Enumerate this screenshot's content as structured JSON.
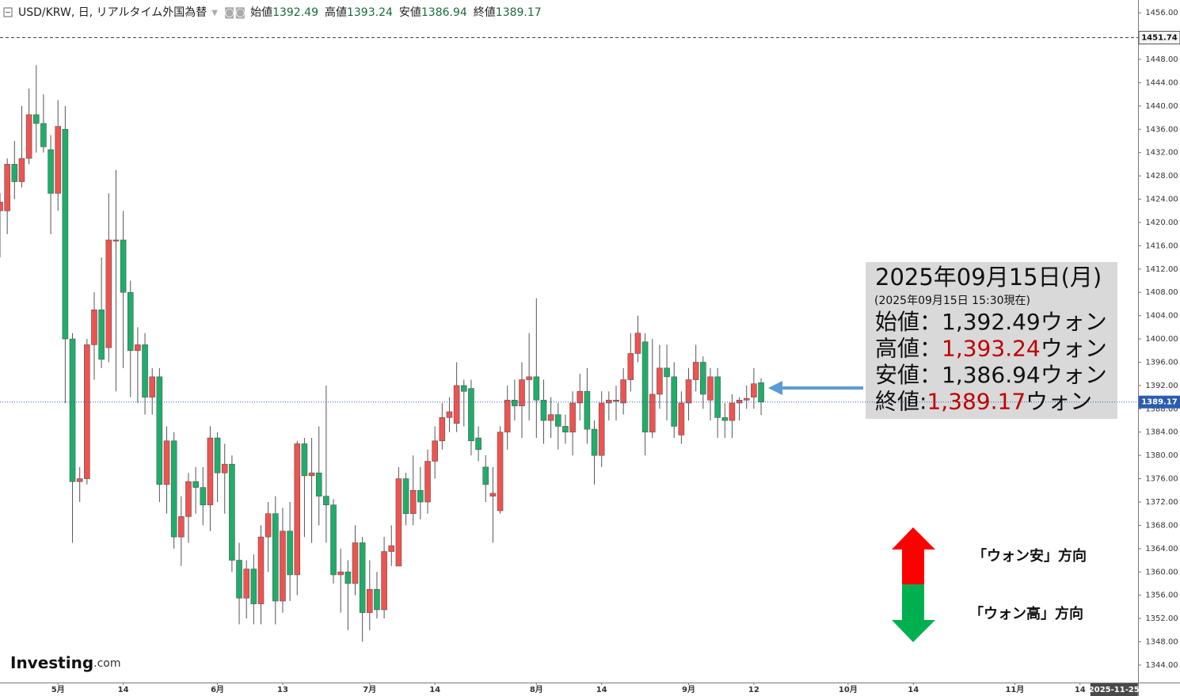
{
  "chart_data": {
    "type": "candlestick",
    "title": "USD/KRW, 日, リアルタイム外国為替",
    "ohlc_labels": [
      "始値",
      "高値",
      "安値",
      "終値"
    ],
    "up_color": "#ef5350",
    "down_color": "#1fae6a",
    "open": [
      1422,
      1422,
      1430,
      1427,
      1431,
      1438.5,
      1437,
      1432.5,
      1425,
      1436,
      1400,
      1375.5,
      1376,
      1399,
      1405,
      1398.5,
      1417,
      1417,
      1408,
      1398,
      1399,
      1390,
      1393.5,
      1375,
      1382.5,
      1366,
      1369.5,
      1375.5,
      1374.5,
      1371.5,
      1383,
      1377,
      1378.5,
      1362,
      1355.5,
      1360.5,
      1354.5,
      1366,
      1370,
      1355,
      1367,
      1359.5,
      1382,
      1376.5,
      1377,
      1373,
      1371.5,
      1359.5,
      1360,
      1358,
      1365,
      1353,
      1357,
      1353.5,
      1363.5,
      1361,
      1376,
      1370,
      1374,
      1372,
      1379,
      1382.5,
      1386.5,
      1385.5,
      1392,
      1391.5,
      1383,
      1378,
      1373,
      1370.5,
      1384,
      1389.5,
      1388.5,
      1393,
      1393.5,
      1389.5,
      1386,
      1387,
      1385,
      1384,
      1389,
      1391,
      1384.5,
      1380,
      1389,
      1389.5,
      1389,
      1393,
      1397.5,
      1399.5,
      1384,
      1390.5,
      1395,
      1393.5,
      1383.5,
      1389,
      1393,
      1396,
      1389.5,
      1393.5,
      1386.5,
      1386,
      1389,
      1389.5,
      1390,
      1392.49
    ],
    "high": [
      1425,
      1431,
      1434,
      1440,
      1443,
      1447,
      1442,
      1435,
      1441,
      1440,
      1401,
      1378,
      1400,
      1408,
      1414,
      1425,
      1429,
      1422,
      1410,
      1402,
      1401,
      1395,
      1395,
      1385,
      1384,
      1373,
      1377,
      1378,
      1378,
      1385,
      1384,
      1382,
      1380,
      1365,
      1362,
      1363,
      1368,
      1372,
      1373,
      1371,
      1372,
      1382.5,
      1383,
      1383,
      1385,
      1392,
      1372.5,
      1364,
      1362,
      1368,
      1366,
      1362,
      1360,
      1366,
      1368,
      1378,
      1377,
      1380,
      1378,
      1381,
      1385,
      1389,
      1390,
      1396,
      1393,
      1393,
      1385,
      1380,
      1378,
      1385,
      1392,
      1393,
      1396,
      1401,
      1407,
      1393,
      1390,
      1389,
      1387,
      1391,
      1394,
      1395,
      1386,
      1391,
      1391,
      1392,
      1395,
      1401,
      1404,
      1401,
      1400,
      1399,
      1399,
      1396,
      1391,
      1395,
      1399,
      1397,
      1395,
      1395,
      1389,
      1390.5,
      1390,
      1392,
      1395,
      1393.24
    ],
    "low": [
      1414,
      1418,
      1424,
      1426,
      1430,
      1432,
      1432,
      1418,
      1422,
      1389,
      1365,
      1372,
      1375,
      1393,
      1395,
      1396,
      1391,
      1395,
      1390,
      1389,
      1387,
      1387,
      1372,
      1370,
      1364,
      1361,
      1365,
      1370,
      1368,
      1367,
      1372,
      1370,
      1360,
      1351,
      1352,
      1351,
      1351,
      1360,
      1351,
      1353,
      1355,
      1356,
      1366,
      1365,
      1368,
      1365,
      1358,
      1353,
      1350,
      1356,
      1348,
      1350,
      1352,
      1352,
      1361,
      1361,
      1368,
      1368,
      1369,
      1370,
      1376,
      1381,
      1384,
      1384,
      1385,
      1380,
      1379,
      1372,
      1365,
      1370,
      1381,
      1386,
      1383,
      1386,
      1383,
      1382,
      1383,
      1381,
      1382,
      1380,
      1386,
      1382,
      1375,
      1378,
      1386,
      1386,
      1387,
      1391,
      1396,
      1380,
      1383,
      1388,
      1386,
      1383,
      1382,
      1386,
      1391,
      1388,
      1386,
      1383,
      1383,
      1383,
      1386,
      1388,
      1388,
      1386.94
    ],
    "close": [
      1423.5,
      1430,
      1427,
      1431,
      1438.5,
      1437,
      1433,
      1425,
      1436.5,
      1400,
      1375.5,
      1376,
      1399,
      1405,
      1396.5,
      1417,
      1417,
      1408,
      1398,
      1399,
      1390,
      1393.5,
      1375,
      1382.5,
      1366,
      1369.5,
      1375.5,
      1374.5,
      1371.5,
      1383,
      1377,
      1378.5,
      1362,
      1355.5,
      1360.5,
      1354.5,
      1366,
      1370,
      1355,
      1367,
      1359.5,
      1382,
      1376.5,
      1377,
      1373,
      1371.5,
      1359.5,
      1360,
      1358,
      1365,
      1353,
      1357,
      1353.5,
      1363.5,
      1364.5,
      1376,
      1370,
      1374,
      1372,
      1379,
      1382.5,
      1386.5,
      1387.5,
      1392,
      1391,
      1382.5,
      1381,
      1375,
      1373.5,
      1384,
      1389.5,
      1388.5,
      1393,
      1393.5,
      1389.5,
      1386,
      1387,
      1385,
      1384,
      1389,
      1391,
      1384.5,
      1380,
      1389,
      1389.5,
      1389.5,
      1393,
      1397.5,
      1401,
      1384,
      1390.5,
      1395,
      1393.5,
      1385,
      1389,
      1393,
      1396,
      1390.5,
      1393.5,
      1386.5,
      1386,
      1389,
      1389.5,
      1389.8,
      1392.3,
      1389.17
    ],
    "xlim": [
      0,
      157
    ],
    "xticks": [
      {
        "value": 8,
        "label": "5月"
      },
      {
        "value": 17,
        "label": "14"
      },
      {
        "value": 30,
        "label": "6月"
      },
      {
        "value": 39,
        "label": "13"
      },
      {
        "value": 51,
        "label": "7月"
      },
      {
        "value": 60,
        "label": "14"
      },
      {
        "value": 74,
        "label": "8月"
      },
      {
        "value": 83,
        "label": "14"
      },
      {
        "value": 95,
        "label": "9月"
      },
      {
        "value": 104,
        "label": "12"
      },
      {
        "value": 117,
        "label": "10月"
      },
      {
        "value": 126,
        "label": "14"
      },
      {
        "value": 140,
        "label": "11月"
      },
      {
        "value": 149,
        "label": "14"
      }
    ],
    "x_marker": {
      "value": 153.7,
      "label": "2025-11-25"
    },
    "ylim": [
      1341,
      1458.2
    ],
    "yticks": [
      {
        "value": 1344,
        "label": "1344.00"
      },
      {
        "value": 1348,
        "label": "1348.00"
      },
      {
        "value": 1352,
        "label": "1352.00"
      },
      {
        "value": 1356,
        "label": "1356.00"
      },
      {
        "value": 1360,
        "label": "1360.00"
      },
      {
        "value": 1364,
        "label": "1364.00"
      },
      {
        "value": 1368,
        "label": "1368.00"
      },
      {
        "value": 1372,
        "label": "1372.00"
      },
      {
        "value": 1376,
        "label": "1376.00"
      },
      {
        "value": 1380,
        "label": "1380.00"
      },
      {
        "value": 1384,
        "label": "1384.00"
      },
      {
        "value": 1388,
        "label": "1388.00"
      },
      {
        "value": 1392,
        "label": "1392.00"
      },
      {
        "value": 1396,
        "label": "1396.00"
      },
      {
        "value": 1400,
        "label": "1400.00"
      },
      {
        "value": 1404,
        "label": "1404.00"
      },
      {
        "value": 1408,
        "label": "1408.00"
      },
      {
        "value": 1412,
        "label": "1412.00"
      },
      {
        "value": 1416,
        "label": "1416.00"
      },
      {
        "value": 1420,
        "label": "1420.00"
      },
      {
        "value": 1424,
        "label": "1424.00"
      },
      {
        "value": 1428,
        "label": "1428.00"
      },
      {
        "value": 1432,
        "label": "1432.00"
      },
      {
        "value": 1436,
        "label": "1436.00"
      },
      {
        "value": 1440,
        "label": "1440.00"
      },
      {
        "value": 1444,
        "label": "1444.00"
      },
      {
        "value": 1448,
        "label": "1448.00"
      },
      {
        "value": 1452,
        "label": "1452.00"
      },
      {
        "value": 1456,
        "label": "1456.00"
      }
    ],
    "price_line": 1451.74,
    "annotation": {
      "date": "2025年09月15日(月)",
      "asof": "(2025年09月15日 15:30現在)",
      "rows": [
        {
          "label": "始値",
          "sep": "：",
          "value": "1,392.49",
          "unit": "ウォン",
          "color": "#111111"
        },
        {
          "label": "高値",
          "sep": "：",
          "value": "1,393.24",
          "unit": "ウォン",
          "color": "#c00000"
        },
        {
          "label": "安値",
          "sep": "：",
          "value": "1,386.94",
          "unit": "ウォン",
          "color": "#111111"
        },
        {
          "label": "終値",
          "sep": ":",
          "value": "1,389.17",
          "unit": "ウォン",
          "color": "#c00000"
        }
      ]
    },
    "legend": [
      "「ウォン安」方向",
      "「ウォン高」方向"
    ],
    "logo": [
      "Investing",
      ".com"
    ]
  }
}
